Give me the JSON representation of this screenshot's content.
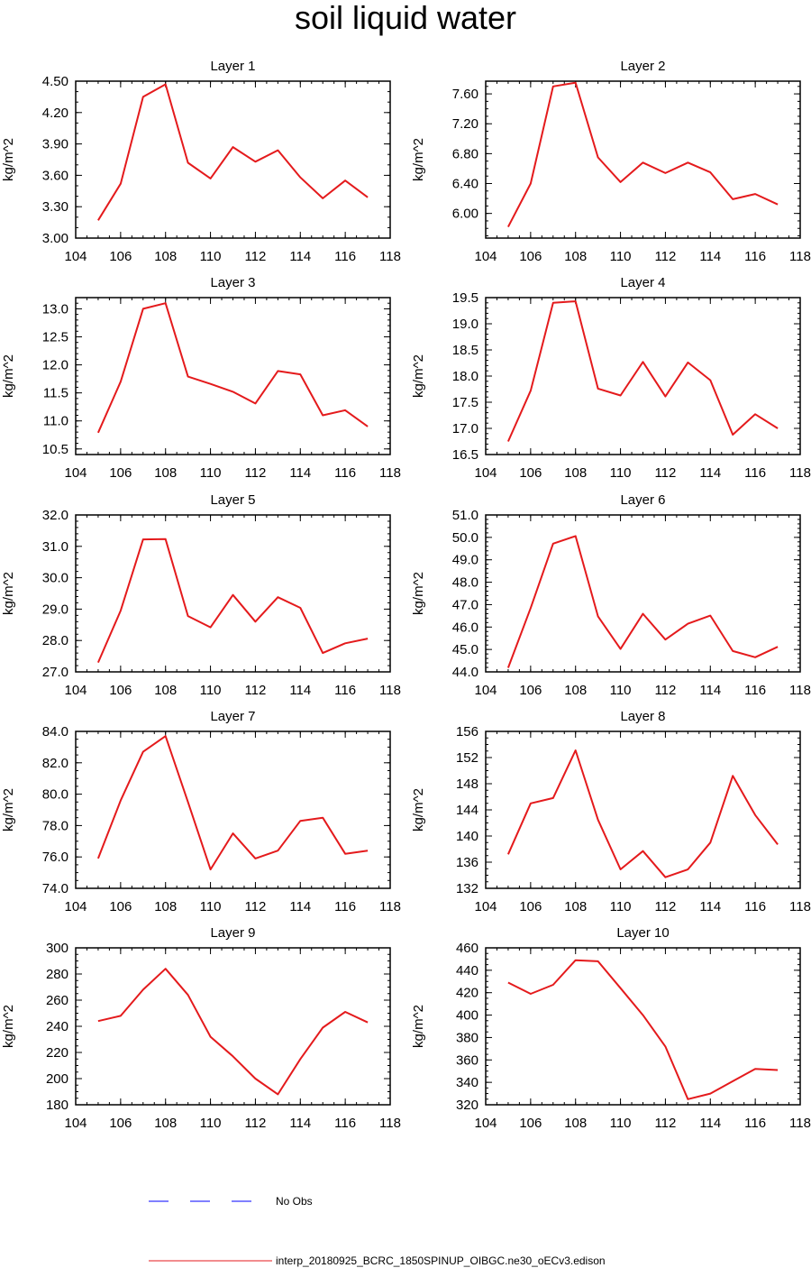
{
  "page": {
    "title": "soil liquid water"
  },
  "colors": {
    "model_line": "#e41a1c",
    "obs_line": "#0000ff",
    "axis": "#000000"
  },
  "legend": {
    "obs_label": "No Obs",
    "model_label": "interp_20180925_BCRC_1850SPINUP_OIBGC.ne30_oECv3.edison"
  },
  "chart_data": [
    {
      "type": "line",
      "title": "Layer 1",
      "ylabel": "kg/m^2",
      "xlim": [
        104,
        118
      ],
      "xticks": [
        104,
        106,
        108,
        110,
        112,
        114,
        116,
        118
      ],
      "ylim": [
        3.0,
        4.5
      ],
      "yticks": [
        "3.00",
        "3.30",
        "3.60",
        "3.90",
        "4.20",
        "4.50"
      ],
      "yminor": 0.1,
      "x": [
        105,
        106,
        107,
        108,
        109,
        110,
        111,
        112,
        113,
        114,
        115,
        116,
        117
      ],
      "values": [
        3.17,
        3.52,
        4.35,
        4.47,
        3.72,
        3.57,
        3.87,
        3.73,
        3.84,
        3.58,
        3.38,
        3.55,
        3.39
      ]
    },
    {
      "type": "line",
      "title": "Layer 2",
      "ylabel": "kg/m^2",
      "xlim": [
        104,
        118
      ],
      "xticks": [
        104,
        106,
        108,
        110,
        112,
        114,
        116,
        118
      ],
      "ylim": [
        5.67,
        7.77
      ],
      "yticks": [
        "6.00",
        "6.40",
        "6.80",
        "7.20",
        "7.60"
      ],
      "yminor": 0.1,
      "x": [
        105,
        106,
        107,
        108,
        109,
        110,
        111,
        112,
        113,
        114,
        115,
        116,
        117
      ],
      "values": [
        5.82,
        6.4,
        7.7,
        7.75,
        6.75,
        6.42,
        6.68,
        6.54,
        6.68,
        6.55,
        6.19,
        6.26,
        6.12
      ]
    },
    {
      "type": "line",
      "title": "Layer 3",
      "ylabel": "kg/m^2",
      "xlim": [
        104,
        118
      ],
      "xticks": [
        104,
        106,
        108,
        110,
        112,
        114,
        116,
        118
      ],
      "ylim": [
        10.4,
        13.2
      ],
      "yticks": [
        "10.5",
        "11.0",
        "11.5",
        "12.0",
        "12.5",
        "13.0"
      ],
      "yminor": 0.1,
      "x": [
        105,
        106,
        107,
        108,
        109,
        110,
        111,
        112,
        113,
        114,
        115,
        116,
        117
      ],
      "values": [
        10.79,
        11.7,
        13.0,
        13.1,
        11.79,
        11.66,
        11.52,
        11.31,
        11.89,
        11.83,
        11.1,
        11.19,
        10.9
      ]
    },
    {
      "type": "line",
      "title": "Layer 4",
      "ylabel": "kg/m^2",
      "xlim": [
        104,
        118
      ],
      "xticks": [
        104,
        106,
        108,
        110,
        112,
        114,
        116,
        118
      ],
      "ylim": [
        16.5,
        19.5
      ],
      "yticks": [
        "16.5",
        "17.0",
        "17.5",
        "18.0",
        "18.5",
        "19.0",
        "19.5"
      ],
      "yminor": 0.1,
      "x": [
        105,
        106,
        107,
        108,
        109,
        110,
        111,
        112,
        113,
        114,
        115,
        116,
        117
      ],
      "values": [
        16.75,
        17.72,
        19.4,
        19.43,
        17.76,
        17.63,
        18.27,
        17.61,
        18.26,
        17.92,
        16.88,
        17.27,
        17.0
      ]
    },
    {
      "type": "line",
      "title": "Layer 5",
      "ylabel": "kg/m^2",
      "xlim": [
        104,
        118
      ],
      "xticks": [
        104,
        106,
        108,
        110,
        112,
        114,
        116,
        118
      ],
      "ylim": [
        27.0,
        32.0
      ],
      "yticks": [
        "27.0",
        "28.0",
        "29.0",
        "30.0",
        "31.0",
        "32.0"
      ],
      "yminor": 0.2,
      "x": [
        105,
        106,
        107,
        108,
        109,
        110,
        111,
        112,
        113,
        114,
        115,
        116,
        117
      ],
      "values": [
        27.3,
        28.95,
        31.22,
        31.23,
        28.78,
        28.42,
        29.45,
        28.6,
        29.38,
        29.04,
        27.6,
        27.91,
        28.06
      ]
    },
    {
      "type": "line",
      "title": "Layer 6",
      "ylabel": "kg/m^2",
      "xlim": [
        104,
        118
      ],
      "xticks": [
        104,
        106,
        108,
        110,
        112,
        114,
        116,
        118
      ],
      "ylim": [
        44.0,
        51.0
      ],
      "yticks": [
        "44.0",
        "45.0",
        "46.0",
        "47.0",
        "48.0",
        "49.0",
        "50.0",
        "51.0"
      ],
      "yminor": 0.2,
      "x": [
        105,
        106,
        107,
        108,
        109,
        110,
        111,
        112,
        113,
        114,
        115,
        116,
        117
      ],
      "values": [
        44.18,
        46.85,
        49.72,
        50.06,
        46.48,
        45.02,
        46.59,
        45.44,
        46.15,
        46.51,
        44.93,
        44.65,
        45.12
      ]
    },
    {
      "type": "line",
      "title": "Layer 7",
      "ylabel": "kg/m^2",
      "xlim": [
        104,
        118
      ],
      "xticks": [
        104,
        106,
        108,
        110,
        112,
        114,
        116,
        118
      ],
      "ylim": [
        74.0,
        84.0
      ],
      "yticks": [
        "74.0",
        "76.0",
        "78.0",
        "80.0",
        "82.0",
        "84.0"
      ],
      "yminor": 0.5,
      "x": [
        105,
        106,
        107,
        108,
        109,
        110,
        111,
        112,
        113,
        114,
        115,
        116,
        117
      ],
      "values": [
        75.9,
        79.6,
        82.7,
        83.7,
        79.5,
        75.2,
        77.5,
        75.9,
        76.4,
        78.3,
        78.5,
        76.2,
        76.4
      ]
    },
    {
      "type": "line",
      "title": "Layer 8",
      "ylabel": "kg/m^2",
      "xlim": [
        104,
        118
      ],
      "xticks": [
        104,
        106,
        108,
        110,
        112,
        114,
        116,
        118
      ],
      "ylim": [
        132,
        156
      ],
      "yticks": [
        "132",
        "136",
        "140",
        "144",
        "148",
        "152",
        "156"
      ],
      "yminor": 1,
      "x": [
        105,
        106,
        107,
        108,
        109,
        110,
        111,
        112,
        113,
        114,
        115,
        116,
        117
      ],
      "values": [
        137.2,
        145.0,
        145.8,
        153.1,
        142.5,
        134.9,
        137.7,
        133.7,
        134.9,
        139.0,
        149.2,
        143.2,
        138.7
      ]
    },
    {
      "type": "line",
      "title": "Layer 9",
      "ylabel": "kg/m^2",
      "xlim": [
        104,
        118
      ],
      "xticks": [
        104,
        106,
        108,
        110,
        112,
        114,
        116,
        118
      ],
      "ylim": [
        180,
        300
      ],
      "yticks": [
        "180",
        "200",
        "220",
        "240",
        "260",
        "280",
        "300"
      ],
      "yminor": 5,
      "x": [
        105,
        106,
        107,
        108,
        109,
        110,
        111,
        112,
        113,
        114,
        115,
        116,
        117
      ],
      "values": [
        244,
        248,
        268,
        284,
        264,
        232,
        217,
        200,
        188,
        215,
        239,
        251,
        243
      ]
    },
    {
      "type": "line",
      "title": "Layer 10",
      "ylabel": "kg/m^2",
      "xlim": [
        104,
        118
      ],
      "xticks": [
        104,
        106,
        108,
        110,
        112,
        114,
        116,
        118
      ],
      "ylim": [
        320,
        460
      ],
      "yticks": [
        "320",
        "340",
        "360",
        "380",
        "400",
        "420",
        "440",
        "460"
      ],
      "yminor": 5,
      "x": [
        105,
        106,
        107,
        108,
        109,
        110,
        111,
        112,
        113,
        114,
        115,
        116,
        117
      ],
      "values": [
        429,
        419,
        427,
        449,
        448,
        424,
        400,
        372,
        325,
        330,
        341,
        352,
        351
      ]
    }
  ]
}
